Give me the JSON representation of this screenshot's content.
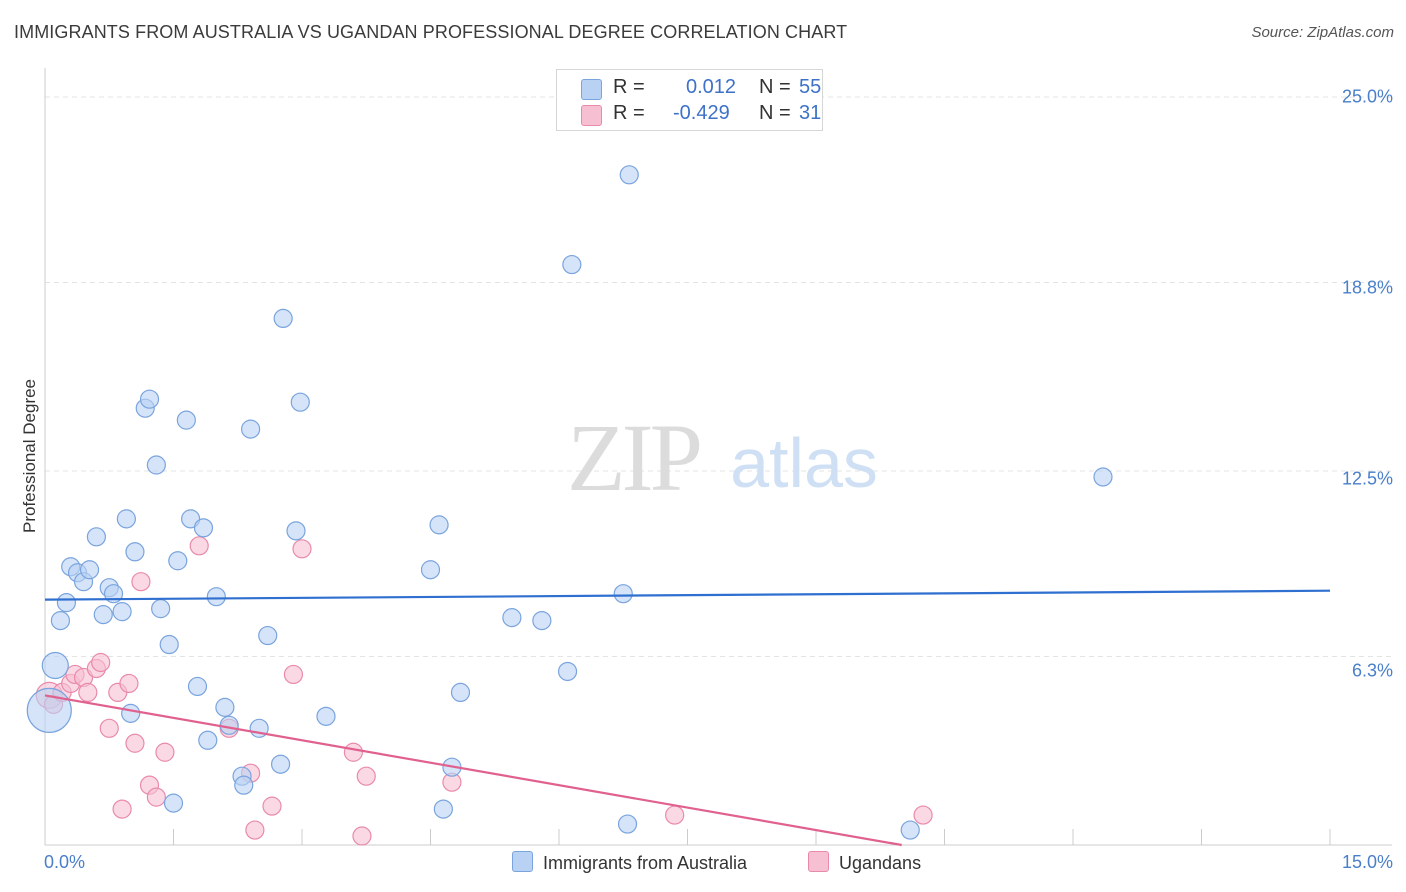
{
  "title": "IMMIGRANTS FROM AUSTRALIA VS UGANDAN PROFESSIONAL DEGREE CORRELATION CHART",
  "source": "Source: ZipAtlas.com",
  "watermark": {
    "zip": "ZIP",
    "atlas": "atlas"
  },
  "legend": {
    "rows": [
      {
        "r_label": "R =",
        "r_value": "0.012",
        "n_label": "N =",
        "n_value": "55"
      },
      {
        "r_label": "R =",
        "r_value": "-0.429",
        "n_label": "N =",
        "n_value": "31"
      }
    ]
  },
  "colors": {
    "blue_fill": "#b9d2f3",
    "blue_stroke": "#7aa4de",
    "blue_line": "#2f6fd0",
    "pink_fill": "#f6c0d2",
    "pink_stroke": "#e98aab",
    "pink_line": "#e0608e",
    "tick_text": "#4a7fc9"
  },
  "chart_data": {
    "type": "scatter",
    "title": "IMMIGRANTS FROM AUSTRALIA VS UGANDAN PROFESSIONAL DEGREE CORRELATION CHART",
    "xlabel": "",
    "ylabel": "Professional Degree",
    "xlim": [
      0,
      15
    ],
    "ylim": [
      0,
      25
    ],
    "x_tick_labels": [
      "0.0%",
      "15.0%"
    ],
    "y_ticks": [
      6.3,
      12.5,
      18.8,
      25.0
    ],
    "y_tick_labels": [
      "6.3%",
      "12.5%",
      "18.8%",
      "25.0%"
    ],
    "series": [
      {
        "name": "Immigrants from Australia",
        "color": "#b9d2f3",
        "trend": {
          "x": [
            0,
            15
          ],
          "y": [
            8.2,
            8.5
          ]
        },
        "points": [
          {
            "x": 0.05,
            "y": 4.5,
            "size": "large"
          },
          {
            "x": 0.12,
            "y": 6.0,
            "size": "medium"
          },
          {
            "x": 0.18,
            "y": 7.5
          },
          {
            "x": 0.25,
            "y": 8.1
          },
          {
            "x": 0.3,
            "y": 9.3
          },
          {
            "x": 0.38,
            "y": 9.1
          },
          {
            "x": 0.45,
            "y": 8.8
          },
          {
            "x": 0.52,
            "y": 9.2
          },
          {
            "x": 0.6,
            "y": 10.3
          },
          {
            "x": 0.68,
            "y": 7.7
          },
          {
            "x": 0.75,
            "y": 8.6
          },
          {
            "x": 0.8,
            "y": 8.4
          },
          {
            "x": 0.9,
            "y": 7.8
          },
          {
            "x": 0.95,
            "y": 10.9
          },
          {
            "x": 1.0,
            "y": 4.4
          },
          {
            "x": 1.05,
            "y": 9.8
          },
          {
            "x": 1.17,
            "y": 14.6
          },
          {
            "x": 1.22,
            "y": 14.9
          },
          {
            "x": 1.3,
            "y": 12.7
          },
          {
            "x": 1.35,
            "y": 7.9
          },
          {
            "x": 1.45,
            "y": 6.7
          },
          {
            "x": 1.5,
            "y": 1.4
          },
          {
            "x": 1.55,
            "y": 9.5
          },
          {
            "x": 1.65,
            "y": 14.2
          },
          {
            "x": 1.7,
            "y": 10.9
          },
          {
            "x": 1.78,
            "y": 5.3
          },
          {
            "x": 1.85,
            "y": 10.6
          },
          {
            "x": 1.9,
            "y": 3.5
          },
          {
            "x": 2.0,
            "y": 8.3
          },
          {
            "x": 2.1,
            "y": 4.6
          },
          {
            "x": 2.15,
            "y": 4.0
          },
          {
            "x": 2.3,
            "y": 2.3
          },
          {
            "x": 2.32,
            "y": 2.0
          },
          {
            "x": 2.4,
            "y": 13.9
          },
          {
            "x": 2.5,
            "y": 3.9
          },
          {
            "x": 2.6,
            "y": 7.0
          },
          {
            "x": 2.75,
            "y": 2.7
          },
          {
            "x": 2.78,
            "y": 17.6
          },
          {
            "x": 2.93,
            "y": 10.5
          },
          {
            "x": 2.98,
            "y": 14.8
          },
          {
            "x": 3.28,
            "y": 4.3
          },
          {
            "x": 4.5,
            "y": 9.2
          },
          {
            "x": 4.6,
            "y": 10.7
          },
          {
            "x": 4.65,
            "y": 1.2
          },
          {
            "x": 4.75,
            "y": 2.6
          },
          {
            "x": 4.85,
            "y": 5.1
          },
          {
            "x": 5.45,
            "y": 7.6
          },
          {
            "x": 5.8,
            "y": 7.5
          },
          {
            "x": 6.1,
            "y": 5.8
          },
          {
            "x": 6.15,
            "y": 19.4
          },
          {
            "x": 6.75,
            "y": 8.4
          },
          {
            "x": 6.8,
            "y": 0.7
          },
          {
            "x": 6.82,
            "y": 22.4
          },
          {
            "x": 10.1,
            "y": 0.5
          },
          {
            "x": 12.35,
            "y": 12.3
          }
        ]
      },
      {
        "name": "Ugandans",
        "color": "#f6c0d2",
        "trend": {
          "x": [
            0,
            10.0
          ],
          "y": [
            5.0,
            0.0
          ]
        },
        "points": [
          {
            "x": 0.05,
            "y": 5.0,
            "size": "medium"
          },
          {
            "x": 0.1,
            "y": 4.7
          },
          {
            "x": 0.2,
            "y": 5.1
          },
          {
            "x": 0.3,
            "y": 5.4
          },
          {
            "x": 0.35,
            "y": 5.7
          },
          {
            "x": 0.45,
            "y": 5.6
          },
          {
            "x": 0.5,
            "y": 5.1
          },
          {
            "x": 0.6,
            "y": 5.9
          },
          {
            "x": 0.65,
            "y": 6.1
          },
          {
            "x": 0.75,
            "y": 3.9
          },
          {
            "x": 0.85,
            "y": 5.1
          },
          {
            "x": 0.9,
            "y": 1.2
          },
          {
            "x": 0.98,
            "y": 5.4
          },
          {
            "x": 1.05,
            "y": 3.4
          },
          {
            "x": 1.12,
            "y": 8.8
          },
          {
            "x": 1.22,
            "y": 2.0
          },
          {
            "x": 1.3,
            "y": 1.6
          },
          {
            "x": 1.4,
            "y": 3.1
          },
          {
            "x": 1.8,
            "y": 10.0
          },
          {
            "x": 2.15,
            "y": 3.9
          },
          {
            "x": 2.4,
            "y": 2.4
          },
          {
            "x": 2.45,
            "y": 0.5
          },
          {
            "x": 2.65,
            "y": 1.3
          },
          {
            "x": 2.9,
            "y": 5.7
          },
          {
            "x": 3.0,
            "y": 9.9
          },
          {
            "x": 3.6,
            "y": 3.1
          },
          {
            "x": 3.7,
            "y": 0.3
          },
          {
            "x": 3.75,
            "y": 2.3
          },
          {
            "x": 4.75,
            "y": 2.1
          },
          {
            "x": 7.35,
            "y": 1.0
          },
          {
            "x": 10.25,
            "y": 1.0
          }
        ]
      }
    ]
  }
}
